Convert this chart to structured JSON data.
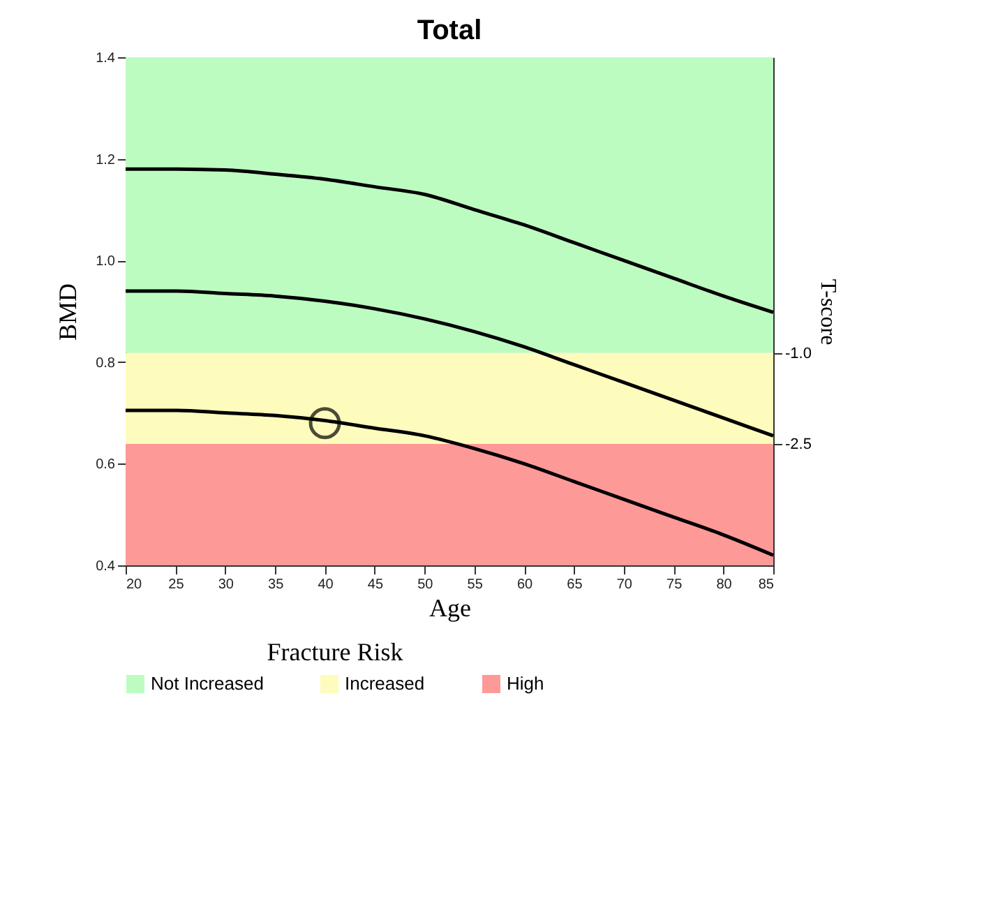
{
  "chart_data": {
    "type": "line",
    "title": "Total",
    "xlabel": "Age",
    "ylabel": "BMD",
    "y2label": "T-score",
    "legend_title": "Fracture Risk",
    "x": [
      20,
      25,
      30,
      35,
      40,
      45,
      50,
      55,
      60,
      65,
      70,
      75,
      80,
      85
    ],
    "series": [
      {
        "color": "#000000",
        "values": [
          1.18,
          1.18,
          1.178,
          1.17,
          1.16,
          1.145,
          1.13,
          1.1,
          1.07,
          1.035,
          1.0,
          0.965,
          0.93,
          0.898
        ]
      },
      {
        "color": "#000000",
        "values": [
          0.94,
          0.94,
          0.935,
          0.93,
          0.92,
          0.905,
          0.885,
          0.86,
          0.83,
          0.795,
          0.76,
          0.725,
          0.69,
          0.655
        ]
      },
      {
        "color": "#000000",
        "values": [
          0.705,
          0.705,
          0.7,
          0.695,
          0.685,
          0.67,
          0.655,
          0.63,
          0.6,
          0.565,
          0.53,
          0.495,
          0.46,
          0.42
        ]
      },
      {
        "type": "scatter",
        "marker": "circle",
        "color": "#000000",
        "x": [
          40
        ],
        "values": [
          0.68
        ]
      }
    ],
    "bands": [
      {
        "axis": "y",
        "from": 0.818,
        "to": 1.4,
        "label": "Not Increased",
        "color": "#bdfcc1"
      },
      {
        "axis": "y",
        "from": 0.639,
        "to": 0.818,
        "label": "Increased",
        "color": "#fefcbc"
      },
      {
        "axis": "y",
        "from": 0.4,
        "to": 0.639,
        "label": "High",
        "color": "#fd9a98"
      }
    ],
    "xlim": [
      20,
      85
    ],
    "xticks": [
      20,
      25,
      30,
      35,
      40,
      45,
      50,
      55,
      60,
      65,
      70,
      75,
      80,
      85
    ],
    "ylim": [
      0.4,
      1.4
    ],
    "yticks": [
      {
        "value": 0.4,
        "label": "0.4"
      },
      {
        "value": 0.6,
        "label": "0.6"
      },
      {
        "value": 0.8,
        "label": "0.8"
      },
      {
        "value": 1.0,
        "label": "1.0"
      },
      {
        "value": 1.2,
        "label": "1.2"
      },
      {
        "value": 1.4,
        "label": "1.4"
      }
    ],
    "y2lim": [
      -4.5,
      3.88
    ],
    "y2ticks": [
      {
        "value": -1.0,
        "label": "-1.0"
      },
      {
        "value": -2.5,
        "label": "-2.5"
      }
    ],
    "grid": false,
    "legend": "bottom",
    "line_style": "solid"
  }
}
